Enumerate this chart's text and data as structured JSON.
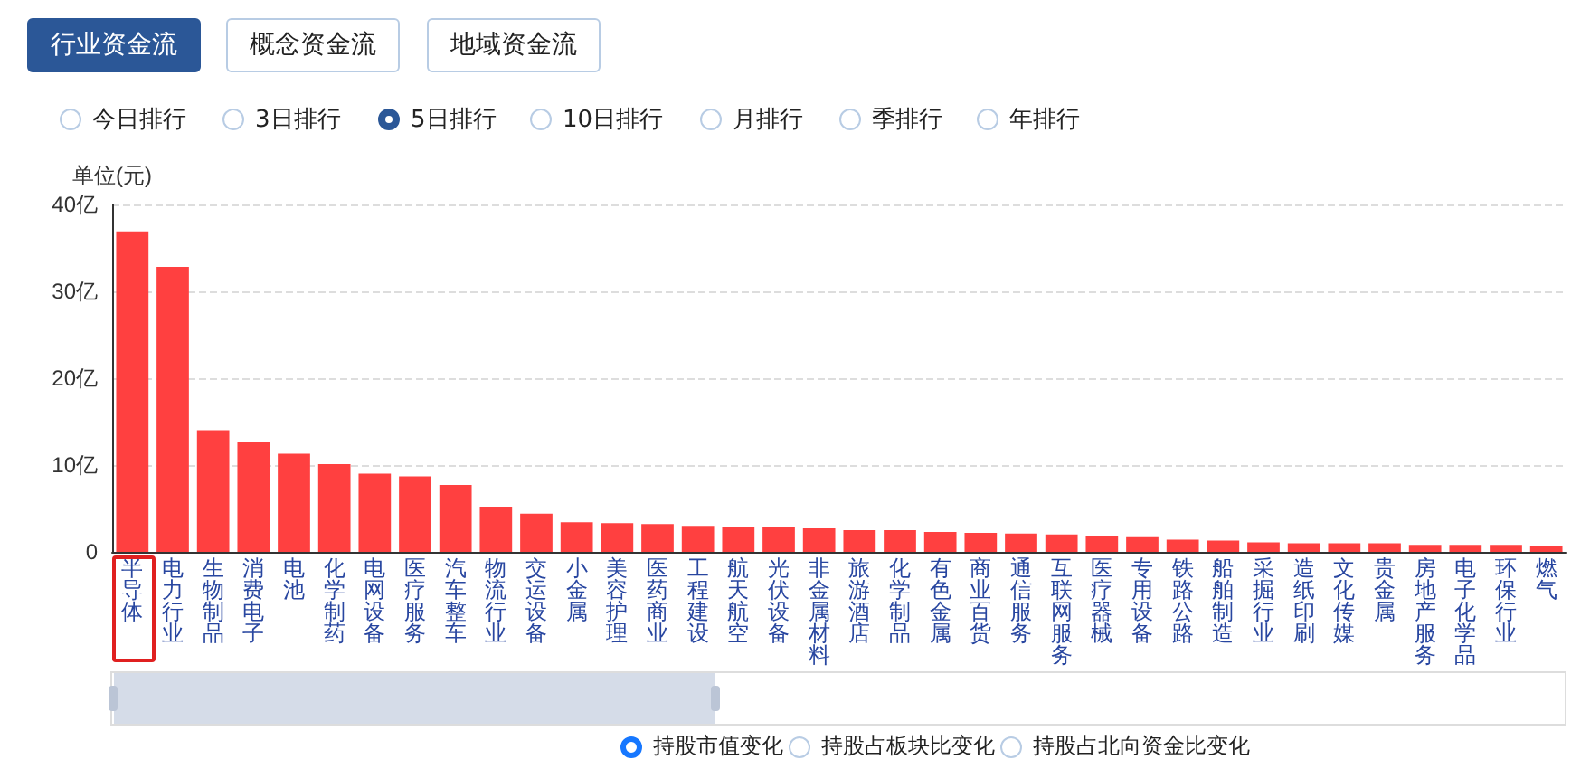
{
  "chart_data": {
    "type": "bar",
    "ylabel": "单位(元)",
    "categories": [
      "半导体",
      "电力行业",
      "生物制品",
      "消费电子",
      "电池",
      "化学制药",
      "电网设备",
      "医疗服务",
      "汽车整车",
      "物流行业",
      "交运设备",
      "小金属",
      "美容护理",
      "医药商业",
      "工程建设",
      "航天航空",
      "光伏设备",
      "非金属材料",
      "旅游酒店",
      "化学制品",
      "有色金属",
      "商业百货",
      "通信服务",
      "互联网服务",
      "医疗器械",
      "专用设备",
      "铁路公路",
      "船舶制造",
      "采掘行业",
      "造纸印刷",
      "文化传媒",
      "贵金属",
      "房地产服务",
      "电子化学品",
      "环保行业",
      "燃气"
    ],
    "values": [
      36.9,
      32.8,
      14.0,
      12.6,
      11.3,
      10.1,
      9.0,
      8.7,
      7.7,
      5.2,
      4.4,
      3.4,
      3.3,
      3.2,
      3.0,
      2.9,
      2.8,
      2.7,
      2.5,
      2.5,
      2.3,
      2.2,
      2.1,
      2.0,
      1.8,
      1.7,
      1.4,
      1.3,
      1.1,
      1.0,
      1.0,
      1.0,
      0.8,
      0.8,
      0.8,
      0.7
    ],
    "color": "#ff4040",
    "ylim": [
      0,
      40
    ],
    "yticks": [
      0,
      {
        "value": 10,
        "label": "10亿"
      },
      {
        "value": 20,
        "label": "20亿"
      },
      {
        "value": 30,
        "label": "30亿"
      },
      {
        "value": 40,
        "label": "40亿"
      }
    ],
    "grid": "y",
    "annotations": [
      "行业资金流",
      "概念资金流",
      "地域资金流",
      "今日排行",
      "3日排行",
      "5日排行",
      "10日排行",
      "月排行",
      "季排行",
      "年排行",
      "持股市值变化",
      "持股占板块比变化",
      "持股占北向资金比变化"
    ]
  }
}
